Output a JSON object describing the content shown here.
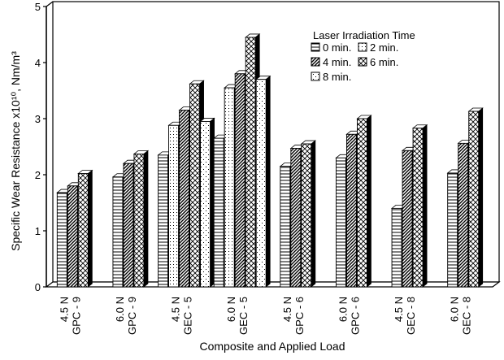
{
  "chart_data": {
    "type": "bar",
    "ylabel": "Specific Wear Resistance x10¹⁰, Nm/m³",
    "xlabel": "Composite and Applied Load",
    "ylim": [
      0,
      5
    ],
    "yticks": [
      0,
      1,
      2,
      3,
      4,
      5
    ],
    "legend_title": "Laser Irradiation Time",
    "legend_position": "top-right",
    "grid": false,
    "categories": [
      {
        "load": "4.5 N",
        "composite": "GPC - 9"
      },
      {
        "load": "6.0 N",
        "composite": "GPC - 9"
      },
      {
        "load": "4.5 N",
        "composite": "GEC - 5"
      },
      {
        "load": "6.0 N",
        "composite": "GEC - 5"
      },
      {
        "load": "4.5 N",
        "composite": "GPC - 6"
      },
      {
        "load": "6.0 N",
        "composite": "GPC - 6"
      },
      {
        "load": "4.5 N",
        "composite": "GEC - 8"
      },
      {
        "load": "6.0 N",
        "composite": "GEC - 8"
      }
    ],
    "series": [
      {
        "name": "0 min.",
        "pattern": "hlines",
        "values": [
          1.68,
          1.96,
          2.35,
          2.65,
          2.15,
          2.3,
          1.4,
          2.03
        ]
      },
      {
        "name": "2 min.",
        "pattern": "dots",
        "values": [
          null,
          null,
          2.88,
          3.55,
          null,
          null,
          null,
          null
        ]
      },
      {
        "name": "4 min.",
        "pattern": "diag",
        "values": [
          1.8,
          2.2,
          3.15,
          3.8,
          2.47,
          2.72,
          2.43,
          2.56
        ]
      },
      {
        "name": "6 min.",
        "pattern": "cross",
        "values": [
          2.02,
          2.37,
          3.62,
          4.45,
          2.55,
          3.0,
          2.83,
          3.13
        ]
      },
      {
        "name": "8 min.",
        "pattern": "sparse",
        "values": [
          null,
          null,
          2.95,
          3.7,
          null,
          null,
          null,
          null
        ]
      }
    ]
  }
}
